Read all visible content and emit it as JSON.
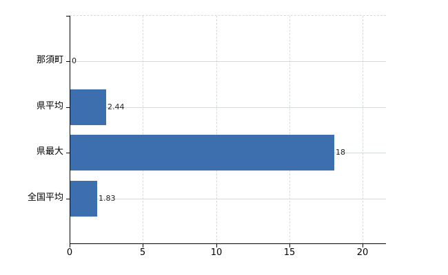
{
  "chart_data": {
    "type": "bar",
    "orientation": "horizontal",
    "title": "",
    "xlabel": "",
    "ylabel": "",
    "categories": [
      "那須町",
      "県平均",
      "県最大",
      "全国平均"
    ],
    "values": [
      0,
      2.44,
      18,
      1.83
    ],
    "value_labels": [
      "0",
      "2.44",
      "18",
      "1.83"
    ],
    "x_ticks": [
      0,
      5,
      10,
      15,
      20
    ],
    "x_tick_labels": [
      "0",
      "5",
      "10",
      "15",
      "20"
    ],
    "xlim": [
      0,
      21.6
    ],
    "grid": true,
    "legend": "none",
    "colors": {
      "bar": "#3d6ead",
      "grid": "#d5dcd5",
      "axis": "#000000",
      "category_text": "#000000",
      "tick_text": "#000000",
      "value_text": "#1f1f1f",
      "background": "#ffffff"
    }
  }
}
